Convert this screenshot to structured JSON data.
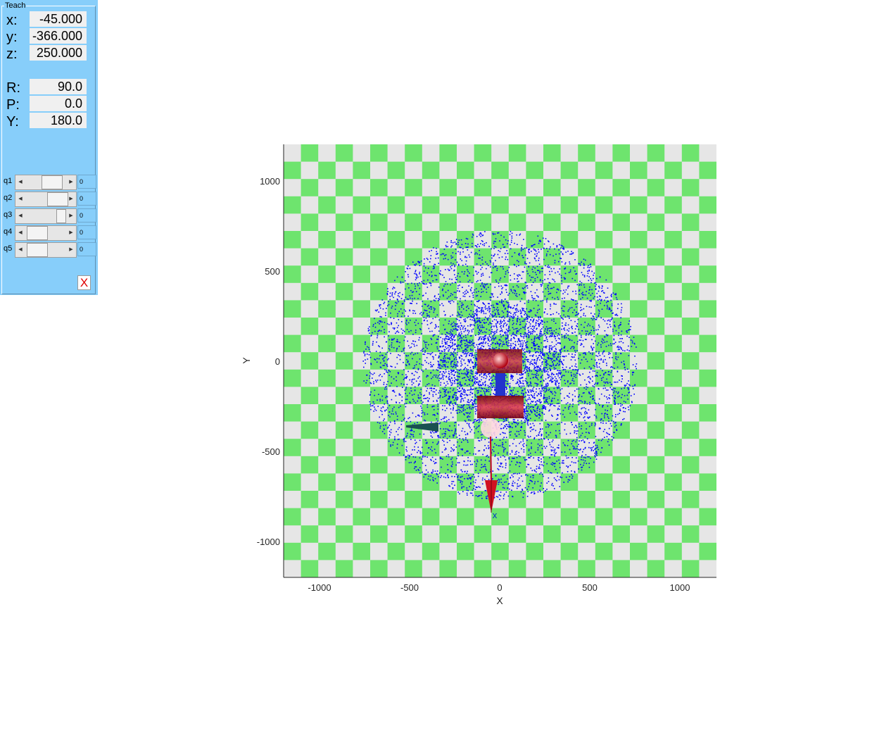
{
  "teach_panel": {
    "title": "Teach",
    "position": {
      "x_label": "x:",
      "x_value": "-45.000",
      "y_label": "y:",
      "y_value": "-366.000",
      "z_label": "z:",
      "z_value": "250.000"
    },
    "orientation": {
      "r_label": "R:",
      "r_value": "90.0",
      "p_label": "P:",
      "p_value": "0.0",
      "yaw_label": "Y:",
      "yaw_value": "180.0"
    },
    "joints": [
      {
        "label": "q1",
        "value": "0",
        "slider_fraction": 0.5
      },
      {
        "label": "q2",
        "value": "0",
        "slider_fraction": 0.75
      },
      {
        "label": "q3",
        "value": "0",
        "slider_fraction": 1.0
      },
      {
        "label": "q4",
        "value": "0",
        "slider_fraction": 0.5
      },
      {
        "label": "q5",
        "value": "0",
        "slider_fraction": 0.5
      }
    ],
    "close_label": "X"
  },
  "plot": {
    "xlabel": "X",
    "ylabel": "Y",
    "xlim": [
      -1200,
      1200
    ],
    "ylim": [
      -1200,
      1200
    ],
    "xticks": [
      "-1000",
      "-500",
      "0",
      "500",
      "1000"
    ],
    "yticks": [
      "1000",
      "500",
      "0",
      "-500",
      "-1000"
    ],
    "floor_colors": [
      "#6ee46e",
      "#e6e6e6"
    ],
    "workspace_point_color": "#0000ff",
    "end_effector_marker": "x",
    "robot_colors": {
      "link": "#c00020",
      "base": "#1a5050"
    }
  }
}
